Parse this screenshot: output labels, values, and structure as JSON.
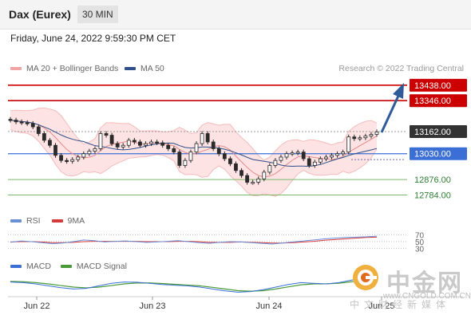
{
  "header": {
    "title": "Dax (Eurex)",
    "timeframe": "30 MIN",
    "datetime": "Friday, June 24, 2022 9:59:30 PM CET"
  },
  "legend": {
    "ma20_label": "MA 20 + Bollinger Bands",
    "ma50_label": "MA 50",
    "research": "Research © 2022 Trading Central",
    "rsi_label": "RSI",
    "rsi_ma_label": "9MA",
    "macd_label": "MACD",
    "macd_signal_label": "MACD Signal"
  },
  "colors": {
    "resistance": "#cc0000",
    "pivot": "#3b6fd6",
    "support": "#7cb86a",
    "current": "#333333",
    "ma20": "#e88a8a",
    "ma50": "#2e4f8a",
    "band_fill": "#fde3e3",
    "arrow": "#2f5b9b",
    "macd": "#3b6fd6",
    "macd_signal": "#4a9a3a"
  },
  "chart_data": {
    "type": "candlestick",
    "symbol": "Dax (Eurex)",
    "timeframe": "30 MIN",
    "ylim": [
      12720,
      13480
    ],
    "x_labels": [
      "Jun 22",
      "Jun 23",
      "Jun 24",
      "Jun 25"
    ],
    "levels": [
      {
        "label": "13438.00",
        "value": 13438,
        "kind": "resistance"
      },
      {
        "label": "13346.00",
        "value": 13346,
        "kind": "resistance"
      },
      {
        "label": "13162.00",
        "value": 13162,
        "kind": "current"
      },
      {
        "label": "13030.00",
        "value": 13030,
        "kind": "pivot"
      },
      {
        "label": "12876.00",
        "value": 12876,
        "kind": "support"
      },
      {
        "label": "12784.00",
        "value": 12784,
        "kind": "support"
      }
    ],
    "close_path": [
      13230,
      13220,
      13215,
      13210,
      13190,
      13150,
      13110,
      13080,
      13020,
      12990,
      12985,
      12995,
      13010,
      13030,
      13045,
      13060,
      13150,
      13140,
      13090,
      13070,
      13080,
      13110,
      13100,
      13080,
      13090,
      13100,
      13095,
      13080,
      13060,
      13040,
      12960,
      12990,
      13040,
      13090,
      13150,
      13100,
      13060,
      13030,
      13000,
      12970,
      12930,
      12900,
      12860,
      12860,
      12880,
      12920,
      12960,
      12990,
      13010,
      13030,
      13035,
      13040,
      13000,
      12960,
      12980,
      13000,
      13010,
      13020,
      13030,
      13040,
      13130,
      13120,
      13125,
      13135,
      13145,
      13160
    ],
    "rsi_levels": [
      "70",
      "50",
      "30"
    ],
    "rsi": [
      48,
      52,
      50,
      47,
      44,
      46,
      50,
      55,
      53,
      49,
      51,
      52,
      50,
      48,
      49,
      51,
      53,
      50,
      47,
      45,
      48,
      50,
      49,
      47,
      45,
      43,
      46,
      49,
      52,
      55,
      58,
      60,
      62,
      63,
      64,
      66
    ],
    "rsi_ma": [
      49,
      50,
      50,
      49,
      47,
      47,
      48,
      50,
      51,
      51,
      51,
      51,
      51,
      50,
      50,
      50,
      51,
      51,
      50,
      48,
      48,
      48,
      49,
      48,
      47,
      46,
      46,
      47,
      49,
      51,
      54,
      56,
      58,
      60,
      62,
      63
    ],
    "macd": [
      0.2,
      0.15,
      0.05,
      -0.1,
      -0.25,
      -0.35,
      -0.3,
      -0.1,
      0.1,
      0.2,
      0.18,
      0.1,
      0.0,
      -0.05,
      -0.1,
      -0.2,
      -0.35,
      -0.5,
      -0.6,
      -0.55,
      -0.4,
      -0.2,
      0.0,
      0.15,
      0.1,
      0.05,
      0.15,
      0.35,
      0.55,
      0.7
    ],
    "macd_signal": [
      0.25,
      0.22,
      0.15,
      0.05,
      -0.08,
      -0.2,
      -0.26,
      -0.2,
      -0.08,
      0.05,
      0.12,
      0.13,
      0.08,
      0.02,
      -0.04,
      -0.1,
      -0.22,
      -0.35,
      -0.48,
      -0.52,
      -0.48,
      -0.35,
      -0.18,
      -0.02,
      0.05,
      0.06,
      0.1,
      0.22,
      0.38,
      0.55
    ]
  },
  "watermark": {
    "brand_cn": "中金网",
    "url": "www.CNGOLD.COM.CN",
    "subtitle": "中文财经新媒体"
  }
}
